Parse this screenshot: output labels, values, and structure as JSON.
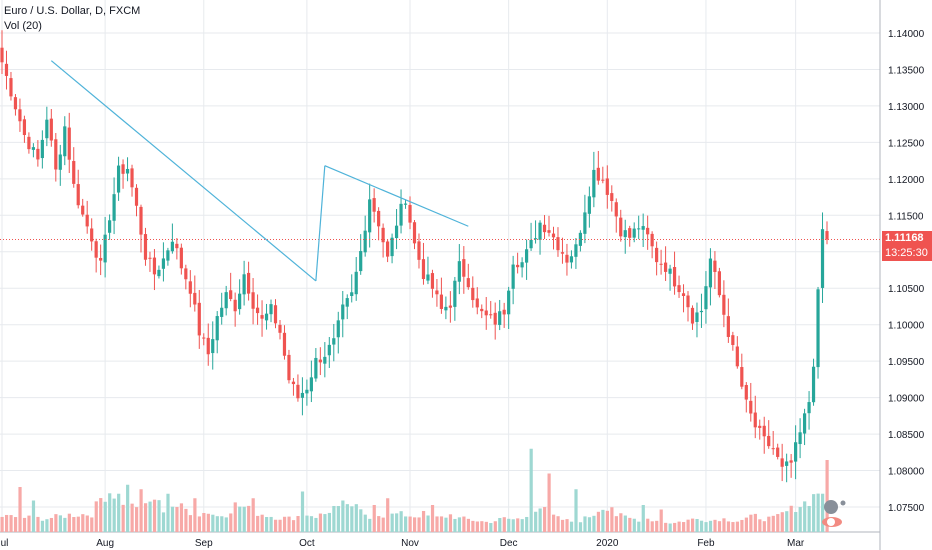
{
  "header": {
    "symbol_line": "Euro / U.S. Dollar, D, FXCM",
    "volume_line": "Vol (20)"
  },
  "last_price": {
    "value": "1.11168",
    "countdown": "13:25:30",
    "color": "#ef5350"
  },
  "colors": {
    "up": "#26a69a",
    "down": "#ef5350",
    "up_volume": "#9ed8d2",
    "down_volume": "#f7a9a7",
    "trendline": "#4fb3d9",
    "grid": "#e7eaee",
    "axis_text": "#131722"
  },
  "chart_data": {
    "type": "candlestick",
    "ylim": [
      1.0735,
      1.144
    ],
    "y_ticks": [
      "1.14000",
      "1.13500",
      "1.13000",
      "1.12500",
      "1.12000",
      "1.11500",
      "1.11000",
      "1.10500",
      "1.10000",
      "1.09500",
      "1.09000",
      "1.08500",
      "1.08000",
      "1.07500"
    ],
    "x_ticks": [
      "Jul",
      "Aug",
      "Sep",
      "Oct",
      "Nov",
      "Dec",
      "2020",
      "Feb",
      "Mar"
    ],
    "x_tick_index": [
      0,
      23,
      45,
      68,
      91,
      113,
      135,
      157,
      177
    ],
    "price_close_keyframes": [
      [
        0,
        1.136
      ],
      [
        3,
        1.13
      ],
      [
        5,
        1.126
      ],
      [
        8,
        1.1225
      ],
      [
        10,
        1.1285
      ],
      [
        12,
        1.121
      ],
      [
        14,
        1.1272
      ],
      [
        16,
        1.119
      ],
      [
        18,
        1.115
      ],
      [
        20,
        1.112
      ],
      [
        22,
        1.108
      ],
      [
        24,
        1.115
      ],
      [
        26,
        1.121
      ],
      [
        28,
        1.1215
      ],
      [
        30,
        1.116
      ],
      [
        32,
        1.1095
      ],
      [
        34,
        1.107
      ],
      [
        36,
        1.109
      ],
      [
        38,
        1.112
      ],
      [
        40,
        1.108
      ],
      [
        42,
        1.105
      ],
      [
        44,
        1.099
      ],
      [
        46,
        1.096
      ],
      [
        48,
        1.101
      ],
      [
        50,
        1.104
      ],
      [
        52,
        1.1025
      ],
      [
        54,
        1.107
      ],
      [
        56,
        1.103
      ],
      [
        58,
        1.1005
      ],
      [
        60,
        1.102
      ],
      [
        62,
        1.099
      ],
      [
        64,
        1.0925
      ],
      [
        66,
        1.09
      ],
      [
        68,
        1.0915
      ],
      [
        70,
        1.095
      ],
      [
        72,
        1.096
      ],
      [
        74,
        1.0975
      ],
      [
        76,
        1.102
      ],
      [
        78,
        1.104
      ],
      [
        80,
        1.11
      ],
      [
        82,
        1.1175
      ],
      [
        84,
        1.114
      ],
      [
        86,
        1.109
      ],
      [
        88,
        1.114
      ],
      [
        90,
        1.1175
      ],
      [
        92,
        1.111
      ],
      [
        94,
        1.107
      ],
      [
        96,
        1.105
      ],
      [
        98,
        1.102
      ],
      [
        100,
        1.103
      ],
      [
        102,
        1.108
      ],
      [
        104,
        1.106
      ],
      [
        106,
        1.102
      ],
      [
        108,
        1.101
      ],
      [
        110,
        1.1005
      ],
      [
        112,
        1.102
      ],
      [
        114,
        1.109
      ],
      [
        116,
        1.1085
      ],
      [
        118,
        1.111
      ],
      [
        120,
        1.114
      ],
      [
        122,
        1.113
      ],
      [
        124,
        1.111
      ],
      [
        126,
        1.109
      ],
      [
        128,
        1.1105
      ],
      [
        130,
        1.116
      ],
      [
        132,
        1.121
      ],
      [
        134,
        1.12
      ],
      [
        136,
        1.117
      ],
      [
        138,
        1.113
      ],
      [
        140,
        1.112
      ],
      [
        142,
        1.1135
      ],
      [
        144,
        1.112
      ],
      [
        146,
        1.109
      ],
      [
        148,
        1.108
      ],
      [
        150,
        1.106
      ],
      [
        152,
        1.1045
      ],
      [
        154,
        1.101
      ],
      [
        156,
        1.102
      ],
      [
        158,
        1.109
      ],
      [
        160,
        1.104
      ],
      [
        162,
        1.099
      ],
      [
        164,
        1.094
      ],
      [
        166,
        1.089
      ],
      [
        168,
        1.086
      ],
      [
        170,
        1.084
      ],
      [
        172,
        1.083
      ],
      [
        174,
        1.08
      ],
      [
        176,
        1.081
      ],
      [
        178,
        1.085
      ],
      [
        180,
        1.0895
      ],
      [
        181,
        1.095
      ],
      [
        182,
        1.104
      ],
      [
        183,
        1.113
      ],
      [
        184,
        1.1117
      ]
    ],
    "volume_keyframes": [
      [
        0,
        0.35
      ],
      [
        5,
        0.32
      ],
      [
        10,
        0.3
      ],
      [
        15,
        0.38
      ],
      [
        20,
        0.4
      ],
      [
        22,
        0.75
      ],
      [
        24,
        0.9
      ],
      [
        26,
        0.8
      ],
      [
        28,
        0.55
      ],
      [
        30,
        0.6
      ],
      [
        32,
        0.55
      ],
      [
        34,
        0.75
      ],
      [
        36,
        0.5
      ],
      [
        38,
        0.6
      ],
      [
        40,
        0.55
      ],
      [
        42,
        0.45
      ],
      [
        44,
        0.4
      ],
      [
        46,
        0.45
      ],
      [
        48,
        0.35
      ],
      [
        50,
        0.4
      ],
      [
        52,
        0.6
      ],
      [
        54,
        0.55
      ],
      [
        56,
        0.45
      ],
      [
        58,
        0.4
      ],
      [
        60,
        0.35
      ],
      [
        62,
        0.32
      ],
      [
        64,
        0.3
      ],
      [
        66,
        0.35
      ],
      [
        68,
        0.4
      ],
      [
        70,
        0.35
      ],
      [
        72,
        0.4
      ],
      [
        74,
        0.55
      ],
      [
        76,
        0.45
      ],
      [
        78,
        0.6
      ],
      [
        80,
        0.45
      ],
      [
        82,
        0.35
      ],
      [
        84,
        0.4
      ],
      [
        86,
        0.35
      ],
      [
        88,
        0.4
      ],
      [
        90,
        0.38
      ],
      [
        92,
        0.35
      ],
      [
        94,
        0.4
      ],
      [
        96,
        0.3
      ],
      [
        98,
        0.32
      ],
      [
        100,
        0.38
      ],
      [
        102,
        0.3
      ],
      [
        104,
        0.28
      ],
      [
        106,
        0.25
      ],
      [
        108,
        0.22
      ],
      [
        110,
        0.25
      ],
      [
        112,
        0.3
      ],
      [
        114,
        0.28
      ],
      [
        116,
        0.3
      ],
      [
        118,
        0.5
      ],
      [
        120,
        0.55
      ],
      [
        122,
        0.4
      ],
      [
        124,
        0.3
      ],
      [
        126,
        0.25
      ],
      [
        128,
        0.22
      ],
      [
        130,
        0.3
      ],
      [
        132,
        0.4
      ],
      [
        134,
        0.6
      ],
      [
        136,
        0.4
      ],
      [
        138,
        0.35
      ],
      [
        140,
        0.3
      ],
      [
        142,
        0.28
      ],
      [
        144,
        0.3
      ],
      [
        146,
        0.25
      ],
      [
        148,
        0.22
      ],
      [
        150,
        0.2
      ],
      [
        152,
        0.25
      ],
      [
        154,
        0.28
      ],
      [
        156,
        0.3
      ],
      [
        158,
        0.25
      ],
      [
        160,
        0.3
      ],
      [
        162,
        0.28
      ],
      [
        164,
        0.25
      ],
      [
        166,
        0.3
      ],
      [
        168,
        0.35
      ],
      [
        170,
        0.3
      ],
      [
        172,
        0.3
      ],
      [
        174,
        0.4
      ],
      [
        176,
        0.5
      ],
      [
        178,
        0.6
      ],
      [
        180,
        0.7
      ],
      [
        182,
        0.9
      ],
      [
        184,
        0.95
      ]
    ],
    "volume_spikes": [
      [
        4,
        1.0
      ],
      [
        7,
        0.7
      ],
      [
        28,
        1.05
      ],
      [
        31,
        0.95
      ],
      [
        37,
        0.85
      ],
      [
        43,
        0.75
      ],
      [
        56,
        0.75
      ],
      [
        67,
        0.9
      ],
      [
        76,
        0.7
      ],
      [
        83,
        0.6
      ],
      [
        86,
        0.75
      ],
      [
        96,
        0.6
      ],
      [
        118,
        1.85
      ],
      [
        122,
        1.3
      ],
      [
        128,
        0.95
      ],
      [
        136,
        0.55
      ],
      [
        143,
        0.6
      ],
      [
        147,
        0.5
      ],
      [
        184,
        1.6
      ]
    ],
    "trendlines": [
      {
        "x1": 11,
        "y1": 1.1362,
        "x2": 70,
        "y2": 1.106
      },
      {
        "x1": 70,
        "y1": 1.106,
        "x2": 72,
        "y2": 1.1218
      },
      {
        "x1": 72,
        "y1": 1.1218,
        "x2": 104,
        "y2": 1.1135
      }
    ],
    "last_price_value": 1.11168,
    "grid": true
  }
}
